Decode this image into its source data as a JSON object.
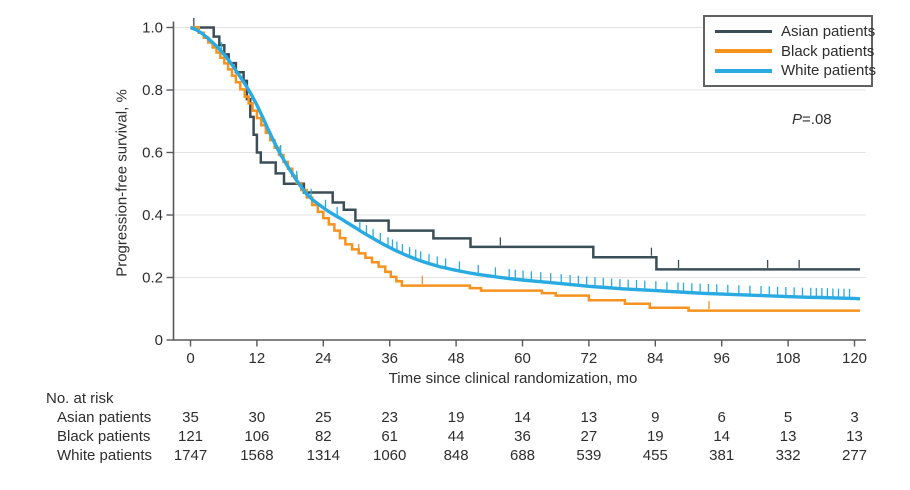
{
  "colors": {
    "axis": "#58595b",
    "grid": "#e3e3e3",
    "text": "#2e2e2e",
    "legend_border": "#5f6163"
  },
  "chart_data": {
    "type": "line",
    "subtype": "kaplan_meier_survival",
    "title": "",
    "xlabel": "Time since clinical randomization, mo",
    "ylabel": "Progression-free survival, %",
    "xlim": [
      0,
      120
    ],
    "ylim": [
      0,
      1.0
    ],
    "x_ticks": [
      0,
      12,
      24,
      36,
      48,
      60,
      72,
      84,
      96,
      108,
      120
    ],
    "y_tick_values": [
      0,
      0.2,
      0.4,
      0.6,
      0.8,
      1.0
    ],
    "y_tick_labels": [
      "0",
      "0.2",
      "0.4",
      "0.6",
      "0.8",
      "1.0"
    ],
    "grid": "horizontal",
    "legend_position": "top-right",
    "annotation": {
      "symbol": "P",
      "text": "=.08"
    },
    "series": [
      {
        "name": "Asian patients",
        "color": "#3b4e57",
        "style": "step",
        "line_width": 2.5,
        "points": [
          [
            0,
            1.0
          ],
          [
            4.2,
            0.971
          ],
          [
            5.2,
            0.943
          ],
          [
            6.1,
            0.914
          ],
          [
            6.9,
            0.886
          ],
          [
            8.2,
            0.857
          ],
          [
            9.6,
            0.829
          ],
          [
            10.2,
            0.771
          ],
          [
            10.8,
            0.714
          ],
          [
            11.4,
            0.657
          ],
          [
            12.0,
            0.6
          ],
          [
            12.7,
            0.568
          ],
          [
            15.4,
            0.533
          ],
          [
            16.9,
            0.5
          ],
          [
            20.5,
            0.472
          ],
          [
            25.7,
            0.44
          ],
          [
            27.7,
            0.417
          ],
          [
            29.8,
            0.382
          ],
          [
            35.8,
            0.35
          ],
          [
            43.9,
            0.325
          ],
          [
            50.6,
            0.298
          ],
          [
            72.8,
            0.265
          ],
          [
            84.2,
            0.226
          ],
          [
            121,
            0.226
          ]
        ],
        "censor_months": [
          0.6,
          56.0,
          83.3,
          88.2,
          104.3,
          110.0
        ]
      },
      {
        "name": "Black patients",
        "color": "#f6921e",
        "style": "step",
        "line_width": 2.5,
        "points": [
          [
            0,
            1.0
          ],
          [
            1.5,
            0.983
          ],
          [
            2.4,
            0.967
          ],
          [
            3.2,
            0.952
          ],
          [
            4.0,
            0.936
          ],
          [
            4.7,
            0.92
          ],
          [
            5.4,
            0.903
          ],
          [
            6.1,
            0.885
          ],
          [
            6.8,
            0.866
          ],
          [
            7.5,
            0.846
          ],
          [
            8.2,
            0.825
          ],
          [
            9.0,
            0.802
          ],
          [
            9.8,
            0.779
          ],
          [
            10.5,
            0.757
          ],
          [
            11.2,
            0.734
          ],
          [
            12.0,
            0.71
          ],
          [
            12.8,
            0.687
          ],
          [
            13.6,
            0.663
          ],
          [
            14.4,
            0.639
          ],
          [
            15.2,
            0.615
          ],
          [
            16.0,
            0.592
          ],
          [
            16.8,
            0.57
          ],
          [
            17.6,
            0.548
          ],
          [
            18.4,
            0.525
          ],
          [
            19.2,
            0.502
          ],
          [
            20.0,
            0.48
          ],
          [
            21.0,
            0.456
          ],
          [
            22.0,
            0.432
          ],
          [
            23.0,
            0.41
          ],
          [
            24.0,
            0.39
          ],
          [
            25.0,
            0.37
          ],
          [
            26.0,
            0.35
          ],
          [
            27.0,
            0.326
          ],
          [
            28.0,
            0.306
          ],
          [
            29.2,
            0.29
          ],
          [
            30.4,
            0.277
          ],
          [
            31.6,
            0.263
          ],
          [
            32.8,
            0.249
          ],
          [
            34.0,
            0.235
          ],
          [
            35.2,
            0.218
          ],
          [
            36.2,
            0.202
          ],
          [
            37.2,
            0.188
          ],
          [
            38.2,
            0.174
          ],
          [
            50.5,
            0.166
          ],
          [
            52.5,
            0.158
          ],
          [
            63.5,
            0.15
          ],
          [
            66.0,
            0.142
          ],
          [
            72.0,
            0.127
          ],
          [
            78.5,
            0.116
          ],
          [
            83.0,
            0.103
          ],
          [
            90.0,
            0.094
          ],
          [
            121,
            0.094
          ]
        ],
        "censor_months": [
          30.4,
          41.9,
          93.7
        ]
      },
      {
        "name": "White patients",
        "color": "#29abe2",
        "style": "line",
        "line_width": 3.4,
        "points": [
          [
            0,
            1.0
          ],
          [
            1,
            0.993
          ],
          [
            2,
            0.982
          ],
          [
            3,
            0.968
          ],
          [
            4,
            0.952
          ],
          [
            5,
            0.935
          ],
          [
            6,
            0.915
          ],
          [
            7,
            0.893
          ],
          [
            8,
            0.868
          ],
          [
            9,
            0.842
          ],
          [
            10,
            0.815
          ],
          [
            11,
            0.785
          ],
          [
            12,
            0.752
          ],
          [
            13,
            0.715
          ],
          [
            14,
            0.675
          ],
          [
            15,
            0.638
          ],
          [
            16,
            0.603
          ],
          [
            17,
            0.572
          ],
          [
            18,
            0.543
          ],
          [
            19,
            0.516
          ],
          [
            20,
            0.49
          ],
          [
            21,
            0.467
          ],
          [
            22,
            0.45
          ],
          [
            23,
            0.436
          ],
          [
            24,
            0.423
          ],
          [
            25,
            0.411
          ],
          [
            26,
            0.4
          ],
          [
            27,
            0.39
          ],
          [
            28,
            0.379
          ],
          [
            29,
            0.368
          ],
          [
            30,
            0.357
          ],
          [
            31,
            0.346
          ],
          [
            32,
            0.335
          ],
          [
            33,
            0.325
          ],
          [
            34,
            0.315
          ],
          [
            35,
            0.305
          ],
          [
            36,
            0.296
          ],
          [
            37,
            0.287
          ],
          [
            38,
            0.279
          ],
          [
            39,
            0.271
          ],
          [
            40,
            0.264
          ],
          [
            41,
            0.257
          ],
          [
            42,
            0.251
          ],
          [
            43,
            0.245
          ],
          [
            44,
            0.24
          ],
          [
            45,
            0.235
          ],
          [
            46,
            0.231
          ],
          [
            47,
            0.227
          ],
          [
            48,
            0.223
          ],
          [
            50,
            0.216
          ],
          [
            52,
            0.21
          ],
          [
            54,
            0.205
          ],
          [
            56,
            0.2
          ],
          [
            58,
            0.196
          ],
          [
            60,
            0.192
          ],
          [
            63,
            0.187
          ],
          [
            66,
            0.182
          ],
          [
            69,
            0.177
          ],
          [
            72,
            0.172
          ],
          [
            75,
            0.168
          ],
          [
            78,
            0.164
          ],
          [
            81,
            0.161
          ],
          [
            84,
            0.158
          ],
          [
            87,
            0.155
          ],
          [
            90,
            0.152
          ],
          [
            93,
            0.149
          ],
          [
            96,
            0.147
          ],
          [
            99,
            0.145
          ],
          [
            102,
            0.143
          ],
          [
            105,
            0.141
          ],
          [
            108,
            0.139
          ],
          [
            111,
            0.137
          ],
          [
            114,
            0.136
          ],
          [
            117,
            0.134
          ],
          [
            120,
            0.133
          ],
          [
            121,
            0.132
          ]
        ],
        "censor_months": [
          5.6,
          16.3,
          19.2,
          21.8,
          24.4,
          26.5,
          30.6,
          31.8,
          33.0,
          34.3,
          35.7,
          36.5,
          37.3,
          38.3,
          39.6,
          40.7,
          41.6,
          43.1,
          44.6,
          46.1,
          48.6,
          52.0,
          55.1,
          57.6,
          58.7,
          60.1,
          61.6,
          63.3,
          65.1,
          67.0,
          68.6,
          70.1,
          71.6,
          73.1,
          74.6,
          76.1,
          77.6,
          79.1,
          80.6,
          82.1,
          84.1,
          86.1,
          88.1,
          89.1,
          90.6,
          92.1,
          93.6,
          95.1,
          97.1,
          99.1,
          101.1,
          103.1,
          104.6,
          106.1,
          107.6,
          109.1,
          110.6,
          112.1,
          113.1,
          114.1,
          115.1,
          116.1,
          117.1,
          118.1,
          119.1
        ]
      }
    ],
    "risk_table": {
      "title": "No. at risk",
      "time_points": [
        0,
        12,
        24,
        36,
        48,
        60,
        72,
        84,
        96,
        108,
        120
      ],
      "rows": [
        {
          "label": "Asian patients",
          "values": [
            "35",
            "30",
            "25",
            "23",
            "19",
            "14",
            "13",
            "9",
            "6",
            "5",
            "3"
          ]
        },
        {
          "label": "Black patients",
          "values": [
            "121",
            "106",
            "82",
            "61",
            "44",
            "36",
            "27",
            "19",
            "14",
            "13",
            "13"
          ]
        },
        {
          "label": "White patients",
          "values": [
            "1747",
            "1568",
            "1314",
            "1060",
            "848",
            "688",
            "539",
            "455",
            "381",
            "332",
            "277"
          ]
        }
      ]
    }
  }
}
